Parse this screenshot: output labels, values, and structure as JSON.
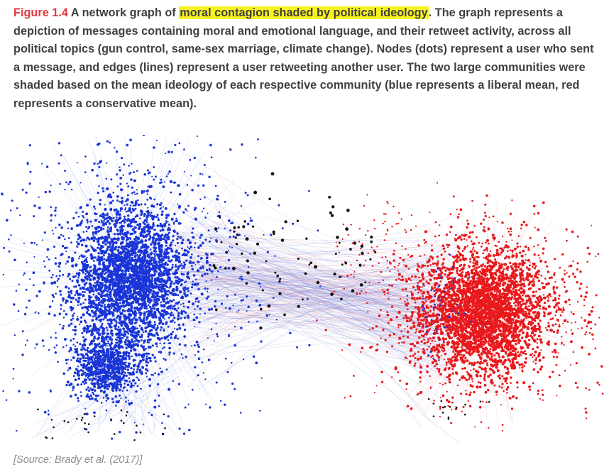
{
  "caption": {
    "figure_label": "Figure 1.4",
    "text_before_highlight": "A network graph of",
    "highlight": "moral contagion shaded by political ideology",
    "text_after_highlight": ". The graph represents a depiction of messages containing moral and emotional language, and their retweet activity, across all political topics (gun control, same-sex marriage, climate change). Nodes (dots) represent a user who sent a message, and edges (lines) represent a user retweeting another user. The two large communities were shaded based on the mean ideology of each respective community (blue represents a liberal mean, red represents a conservative mean)."
  },
  "graph": {
    "communities": [
      {
        "ideology": "liberal",
        "color": "#1a35d6"
      },
      {
        "ideology": "conservative",
        "color": "#e8191c"
      }
    ],
    "bridge_node_color": "#111111",
    "edge_color_liberal": "#5c6fdc",
    "edge_color_conservative": "#e0707a"
  },
  "source": "[Source: Brady et al. (2017)]",
  "colors": {
    "figure_label": "#e4373d",
    "highlight": "#f7f21f",
    "text": "#404040",
    "source": "#8c8c8c"
  }
}
